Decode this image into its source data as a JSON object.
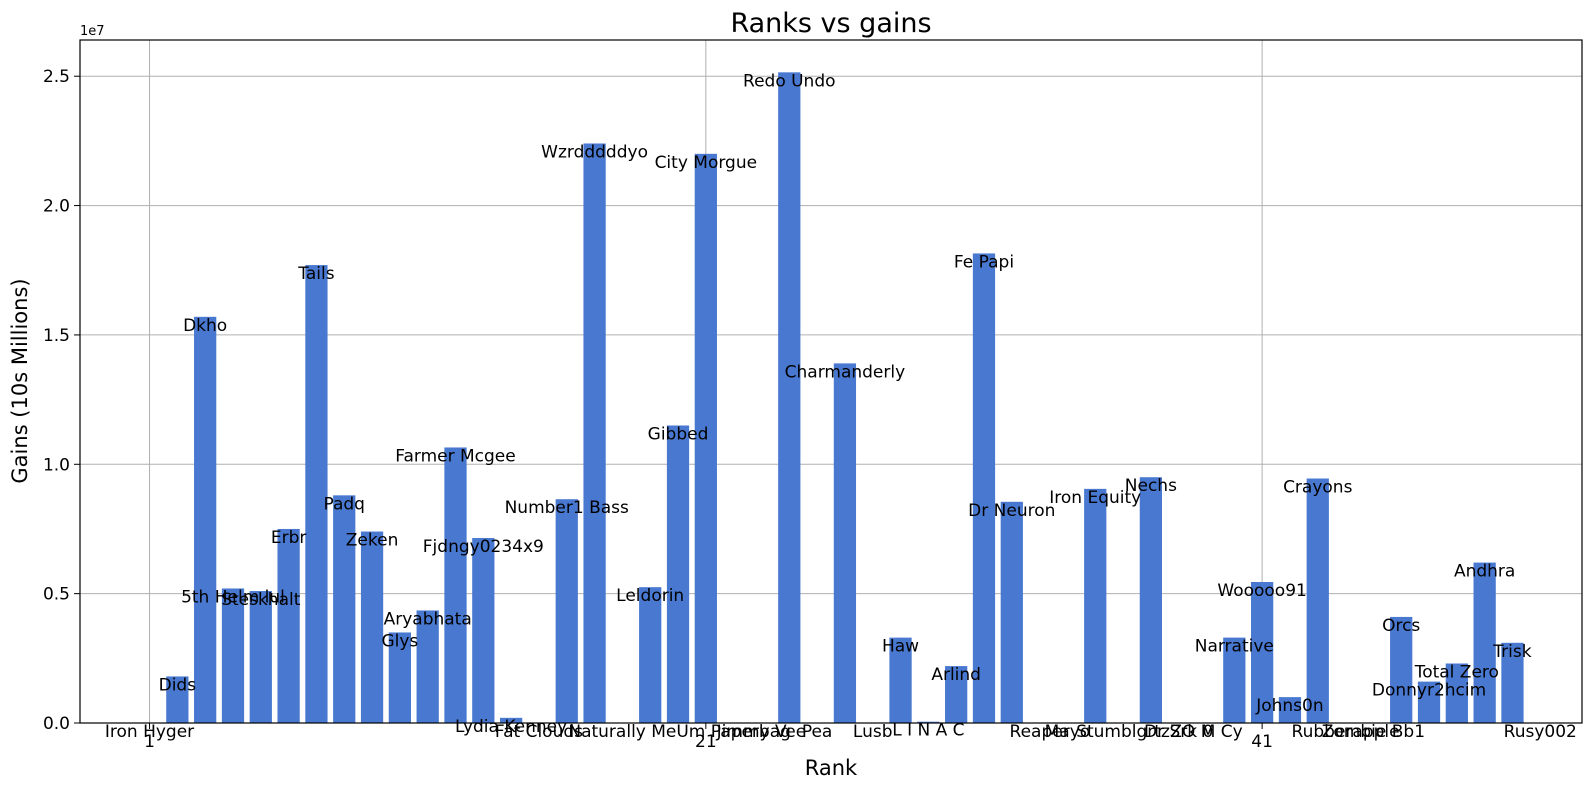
{
  "chart_data": {
    "type": "bar",
    "title": "Ranks vs gains",
    "xlabel": "Rank",
    "ylabel": "Gains (10s Millions)",
    "y_multiplier_label": "1e7",
    "xlim": [
      -1.5,
      52.5
    ],
    "ylim": [
      0,
      26400000
    ],
    "grid": true,
    "bar_color": "#4878d0",
    "x_ticks": [
      {
        "value": 1,
        "label": "1"
      },
      {
        "value": 21,
        "label": "21"
      },
      {
        "value": 41,
        "label": "41"
      }
    ],
    "y_ticks": [
      {
        "value": 0,
        "label": "0.0"
      },
      {
        "value": 5000000,
        "label": "0.5"
      },
      {
        "value": 10000000,
        "label": "1.0"
      },
      {
        "value": 15000000,
        "label": "1.5"
      },
      {
        "value": 20000000,
        "label": "2.0"
      },
      {
        "value": 25000000,
        "label": "2.5"
      }
    ],
    "ranks": [
      1,
      2,
      3,
      4,
      5,
      6,
      7,
      8,
      9,
      10,
      11,
      12,
      13,
      14,
      15,
      16,
      17,
      18,
      19,
      20,
      21,
      22,
      23,
      24,
      25,
      26,
      27,
      28,
      29,
      30,
      31,
      32,
      33,
      34,
      35,
      36,
      37,
      38,
      39,
      40,
      41,
      42,
      43,
      44,
      45,
      46,
      47,
      48,
      49,
      50,
      51
    ],
    "names": [
      "Iron Hyger",
      "Dids",
      "Dkho",
      "5th Helm lul",
      "Steskhalt",
      "Erbr",
      "Tails",
      "Padq",
      "Zeken",
      "Glys",
      "Aryabhata",
      "Farmer Mcgee",
      "Fjdngy0234x9",
      "Lydia Kenney",
      "Fat Clouds",
      "Number1 Bass",
      "Wzrdddddyo",
      "Naturally Me",
      "Leldorin",
      "Gibbed",
      "City Morgue",
      "Um Paperbag",
      "Jimmy Vee",
      "Redo Undo",
      "Pea",
      "Charmanderly",
      "Lusb",
      "Haw",
      "L I N A C",
      "Arlind",
      "Fe Papi",
      "Dr Neuron",
      "Reaper",
      "Mayo",
      "Iron Equity",
      "Stumblgrtz",
      "Nechs",
      "Dr Srk 0",
      "ZO M Cy",
      "Narrative",
      "Wooooo91",
      "Johns0n",
      "Crayons",
      "Rubberapple",
      "Zombie Bb1",
      "Orcs",
      "Donnyr2hcim",
      "Total Zero",
      "Andhra",
      "Trisk",
      "Rusy002"
    ],
    "values": [
      0,
      1800000,
      15700000,
      5200000,
      5100000,
      7500000,
      17700000,
      8800000,
      7400000,
      3500000,
      4350000,
      10650000,
      7150000,
      200000,
      0,
      8650000,
      22400000,
      0,
      5250000,
      11500000,
      22000000,
      0,
      0,
      25150000,
      0,
      13900000,
      0,
      3300000,
      50000,
      2200000,
      18150000,
      8550000,
      0,
      0,
      9050000,
      0,
      9500000,
      0,
      0,
      3300000,
      5450000,
      1000000,
      9450000,
      0,
      0,
      4100000,
      1600000,
      2300000,
      6200000,
      3100000,
      0
    ]
  }
}
